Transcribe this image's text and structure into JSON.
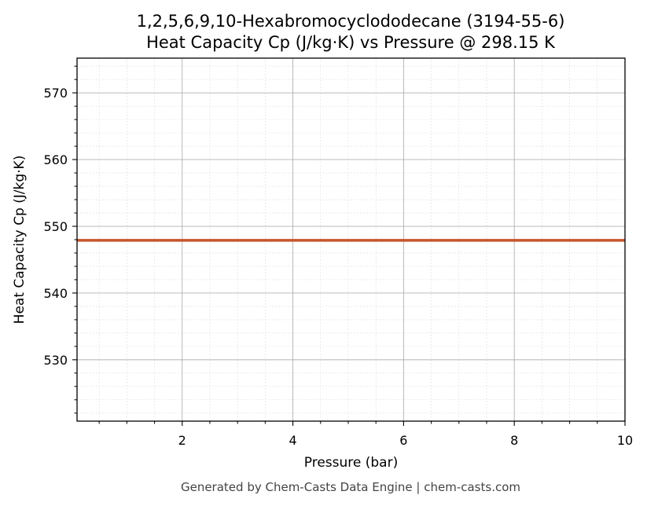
{
  "colors": {
    "line": "#c8552b",
    "major_grid": "#b0b0b0",
    "minor_grid": "#dddddd"
  },
  "footer": "Generated by Chem-Casts Data Engine | chem-casts.com",
  "chart_data": {
    "type": "line",
    "title_lines": [
      "1,2,5,6,9,10-Hexabromocyclododecane (3194-55-6)",
      "Heat Capacity Cp (J/kg·K) vs Pressure @ 298.15 K"
    ],
    "xlabel": "Pressure (bar)",
    "ylabel": "Heat Capacity Cp (J/kg·K)",
    "xlim": [
      0.1,
      10
    ],
    "ylim": [
      520.8,
      575.2
    ],
    "xticks": [
      2,
      4,
      6,
      8,
      10
    ],
    "yticks": [
      530,
      540,
      550,
      560,
      570
    ],
    "grid": true,
    "minor_grid": true,
    "series": [
      {
        "x": [
          0.1,
          10
        ],
        "y": [
          547.9,
          547.9
        ]
      }
    ]
  }
}
